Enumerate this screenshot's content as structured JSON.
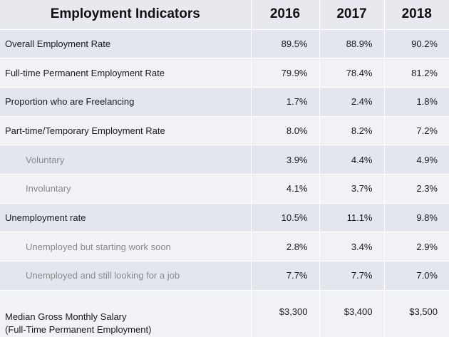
{
  "table": {
    "header": {
      "title": "Employment Indicators",
      "years": [
        "2016",
        "2017",
        "2018"
      ]
    },
    "rows": [
      {
        "label": "Overall Employment Rate",
        "indent": false,
        "values": [
          "89.5%",
          "88.9%",
          "90.2%"
        ]
      },
      {
        "label": "Full-time Permanent Employment Rate",
        "indent": false,
        "values": [
          "79.9%",
          "78.4%",
          "81.2%"
        ]
      },
      {
        "label": "Proportion who are Freelancing",
        "indent": false,
        "values": [
          "1.7%",
          "2.4%",
          "1.8%"
        ]
      },
      {
        "label": "Part-time/Temporary Employment Rate",
        "indent": false,
        "values": [
          "8.0%",
          "8.2%",
          "7.2%"
        ]
      },
      {
        "label": "Voluntary",
        "indent": true,
        "values": [
          "3.9%",
          "4.4%",
          "4.9%"
        ]
      },
      {
        "label": "Involuntary",
        "indent": true,
        "values": [
          "4.1%",
          "3.7%",
          "2.3%"
        ]
      },
      {
        "label": "Unemployment rate",
        "indent": false,
        "values": [
          "10.5%",
          "11.1%",
          "9.8%"
        ]
      },
      {
        "label": "Unemployed but starting work soon",
        "indent": true,
        "values": [
          "2.8%",
          "3.4%",
          "2.9%"
        ]
      },
      {
        "label": "Unemployed and still looking for a job",
        "indent": true,
        "values": [
          "7.7%",
          "7.7%",
          "7.0%"
        ]
      }
    ],
    "salary_row": {
      "label_line1": "Median Gross Monthly Salary",
      "label_line2": "(Full-Time Permanent Employment)",
      "values": [
        "$3,300",
        "$3,400",
        "$3,500"
      ]
    }
  }
}
